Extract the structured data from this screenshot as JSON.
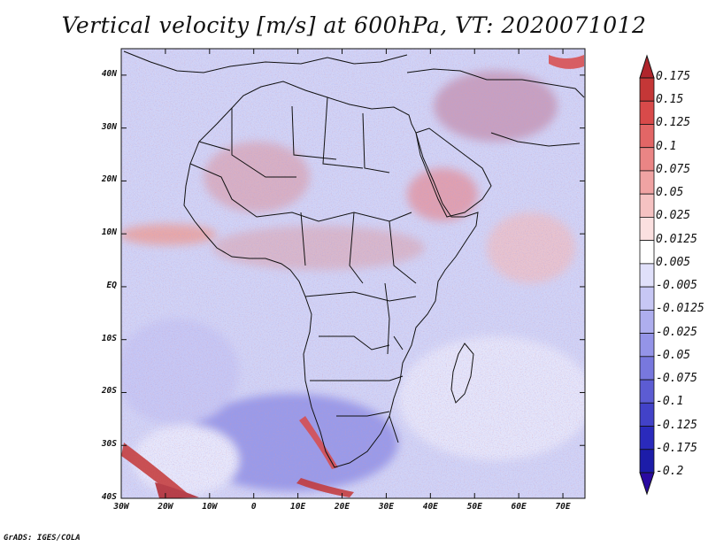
{
  "title": "Vertical velocity [m/s] at 600hPa, VT: 2020071012",
  "credit": "GrADS: IGES/COLA",
  "map": {
    "lat_labels": [
      "40N",
      "30N",
      "20N",
      "10N",
      "EQ",
      "10S",
      "20S",
      "30S",
      "40S"
    ],
    "lon_labels": [
      "30W",
      "20W",
      "10W",
      "0",
      "10E",
      "20E",
      "30E",
      "40E",
      "50E",
      "60E",
      "70E"
    ],
    "lat_range": [
      -40,
      45
    ],
    "lon_range": [
      -30,
      75
    ],
    "field": "vertical velocity",
    "level": "600hPa",
    "valid_time": "2020071012"
  },
  "colorbar": {
    "labels": [
      "0.175",
      "0.15",
      "0.125",
      "0.1",
      "0.075",
      "0.05",
      "0.025",
      "0.0125",
      "0.005",
      "-0.005",
      "-0.0125",
      "-0.025",
      "-0.05",
      "-0.075",
      "-0.1",
      "-0.125",
      "-0.175",
      "-0.2"
    ],
    "colors": [
      "#b0252c",
      "#c43737",
      "#d84a4a",
      "#e26666",
      "#ea8585",
      "#f0a3a3",
      "#f5c2c2",
      "#fbe0e0",
      "#ffffff",
      "#e0e0fa",
      "#c7c7f4",
      "#aeaeee",
      "#9494e8",
      "#7878de",
      "#5c5cd3",
      "#4242c8",
      "#2a2abc",
      "#1c1ca8",
      "#2a0aa0"
    ]
  }
}
